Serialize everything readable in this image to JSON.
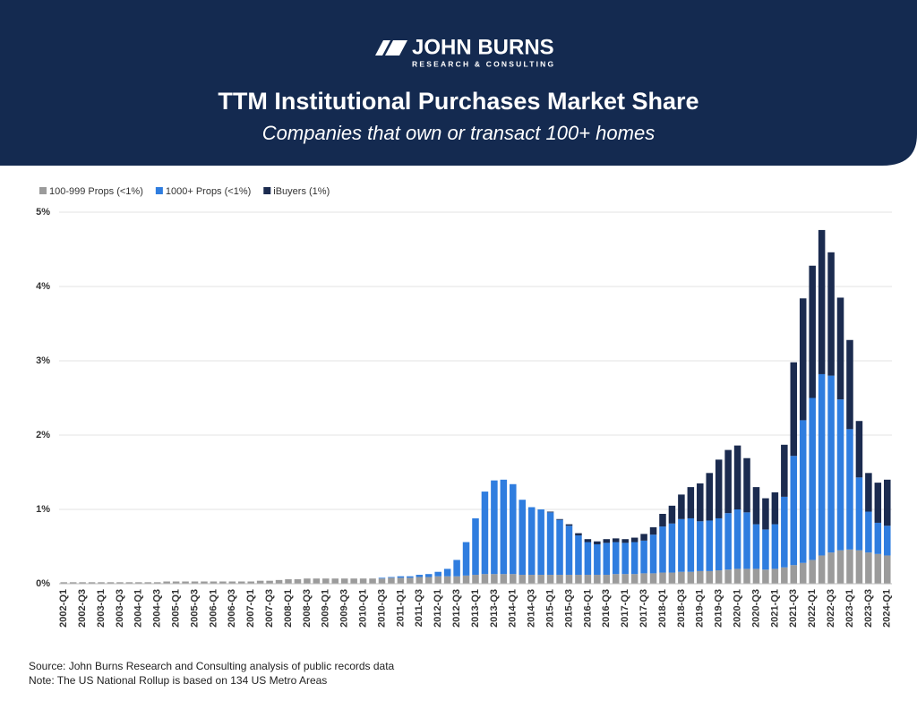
{
  "header": {
    "brand": "JOHN BURNS",
    "brand_sub": "RESEARCH & CONSULTING"
  },
  "chart_data": {
    "type": "bar",
    "stacked": true,
    "title": "TTM Institutional Purchases Market Share",
    "subtitle": "Companies that own or transact 100+ homes",
    "categories": [
      "2002-Q1",
      null,
      "2002-Q3",
      null,
      "2003-Q1",
      null,
      "2003-Q3",
      null,
      "2004-Q1",
      null,
      "2004-Q3",
      null,
      "2005-Q1",
      null,
      "2005-Q3",
      null,
      "2006-Q1",
      null,
      "2006-Q3",
      null,
      "2007-Q1",
      null,
      "2007-Q3",
      null,
      "2008-Q1",
      null,
      "2008-Q3",
      null,
      "2009-Q1",
      null,
      "2009-Q3",
      null,
      "2010-Q1",
      null,
      "2010-Q3",
      null,
      "2011-Q1",
      null,
      "2011-Q3",
      null,
      "2012-Q1",
      null,
      "2012-Q3",
      null,
      "2013-Q1",
      null,
      "2013-Q3",
      null,
      "2014-Q1",
      null,
      "2014-Q3",
      null,
      "2015-Q1",
      null,
      "2015-Q3",
      null,
      "2016-Q1",
      null,
      "2016-Q3",
      null,
      "2017-Q1",
      null,
      "2017-Q3",
      null,
      "2018-Q1",
      null,
      "2018-Q3",
      null,
      "2019-Q1",
      null,
      "2019-Q3",
      null,
      "2020-Q1",
      null,
      "2020-Q3",
      null,
      "2021-Q1",
      null,
      "2021-Q3",
      null,
      "2022-Q1",
      null,
      "2022-Q3",
      null,
      "2023-Q1",
      null,
      "2023-Q3",
      null,
      "2024-Q1"
    ],
    "series": [
      {
        "name": "100-999 Props (<1%)",
        "color": "#9b9b9b",
        "values": [
          0.02,
          0.02,
          0.02,
          0.02,
          0.02,
          0.02,
          0.02,
          0.02,
          0.02,
          0.02,
          0.02,
          0.03,
          0.03,
          0.03,
          0.03,
          0.03,
          0.03,
          0.03,
          0.03,
          0.03,
          0.03,
          0.04,
          0.04,
          0.05,
          0.06,
          0.06,
          0.07,
          0.07,
          0.07,
          0.07,
          0.07,
          0.07,
          0.07,
          0.07,
          0.07,
          0.08,
          0.08,
          0.08,
          0.09,
          0.09,
          0.1,
          0.1,
          0.1,
          0.11,
          0.12,
          0.13,
          0.13,
          0.13,
          0.13,
          0.12,
          0.12,
          0.12,
          0.12,
          0.12,
          0.12,
          0.12,
          0.12,
          0.12,
          0.12,
          0.13,
          0.13,
          0.13,
          0.14,
          0.14,
          0.15,
          0.15,
          0.16,
          0.16,
          0.17,
          0.17,
          0.18,
          0.19,
          0.2,
          0.2,
          0.2,
          0.19,
          0.2,
          0.22,
          0.25,
          0.28,
          0.32,
          0.38,
          0.42,
          0.45,
          0.46,
          0.45,
          0.42,
          0.4,
          0.38
        ]
      },
      {
        "name": "1000+ Props (<1%)",
        "color": "#2f7ddf",
        "values": [
          0,
          0,
          0,
          0,
          0,
          0,
          0,
          0,
          0,
          0,
          0,
          0,
          0,
          0,
          0,
          0,
          0,
          0,
          0,
          0,
          0,
          0,
          0,
          0,
          0,
          0,
          0,
          0,
          0,
          0,
          0,
          0,
          0,
          0,
          0.01,
          0.01,
          0.02,
          0.02,
          0.03,
          0.04,
          0.06,
          0.1,
          0.22,
          0.45,
          0.76,
          1.11,
          1.26,
          1.27,
          1.21,
          1.01,
          0.91,
          0.88,
          0.84,
          0.74,
          0.66,
          0.53,
          0.44,
          0.41,
          0.43,
          0.43,
          0.42,
          0.43,
          0.44,
          0.52,
          0.62,
          0.66,
          0.71,
          0.72,
          0.67,
          0.68,
          0.7,
          0.76,
          0.8,
          0.76,
          0.6,
          0.54,
          0.6,
          0.95,
          1.47,
          1.92,
          2.18,
          2.44,
          2.38,
          2.03,
          1.62,
          0.98,
          0.55,
          0.42,
          0.4
        ]
      },
      {
        "name": "iBuyers (1%)",
        "color": "#1b2b4f",
        "values": [
          0,
          0,
          0,
          0,
          0,
          0,
          0,
          0,
          0,
          0,
          0,
          0,
          0,
          0,
          0,
          0,
          0,
          0,
          0,
          0,
          0,
          0,
          0,
          0,
          0,
          0,
          0,
          0,
          0,
          0,
          0,
          0,
          0,
          0,
          0,
          0,
          0,
          0,
          0,
          0,
          0,
          0,
          0,
          0,
          0,
          0,
          0,
          0,
          0,
          0,
          0,
          0,
          0.01,
          0.01,
          0.02,
          0.03,
          0.04,
          0.04,
          0.05,
          0.05,
          0.05,
          0.06,
          0.09,
          0.1,
          0.17,
          0.24,
          0.33,
          0.42,
          0.51,
          0.64,
          0.79,
          0.85,
          0.86,
          0.73,
          0.5,
          0.42,
          0.43,
          0.7,
          1.26,
          1.64,
          1.78,
          1.94,
          1.66,
          1.37,
          1.2,
          0.76,
          0.52,
          0.54,
          0.62
        ]
      }
    ],
    "ylim": [
      0,
      5
    ],
    "yticks": [
      {
        "value": 0,
        "label": "0%"
      },
      {
        "value": 1,
        "label": "1%"
      },
      {
        "value": 2,
        "label": "2%"
      },
      {
        "value": 3,
        "label": "3%"
      },
      {
        "value": 4,
        "label": "4%"
      },
      {
        "value": 5,
        "label": "5%"
      }
    ],
    "grid": true,
    "legend": "top-left",
    "notes": [
      "Source: John Burns Research and Consulting analysis of public records data",
      "Note: The US National Rollup is based on 134 US Metro Areas"
    ]
  }
}
